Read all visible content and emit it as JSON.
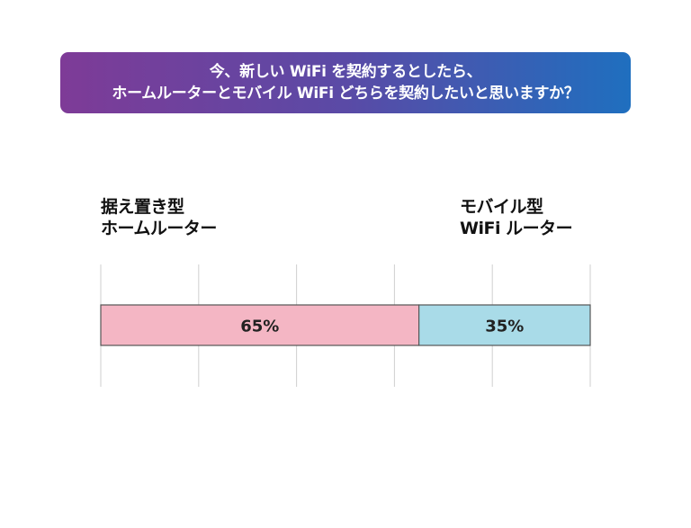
{
  "title": {
    "line1": "今、新しい WiFi を契約するとしたら、",
    "line2": "ホームルーターとモバイル WiFi どちらを契約したいと思いますか？"
  },
  "chart_data": {
    "type": "bar",
    "orientation": "horizontal-stacked",
    "categories": [
      "据え置き型\nホームルーター",
      "モバイル型\nWiFi ルーター"
    ],
    "values": [
      65,
      35
    ],
    "labels": [
      "65%",
      "35%"
    ],
    "colors": [
      "#f4b6c4",
      "#a9dbe8"
    ],
    "xlim": [
      0,
      100
    ],
    "grid": true
  }
}
